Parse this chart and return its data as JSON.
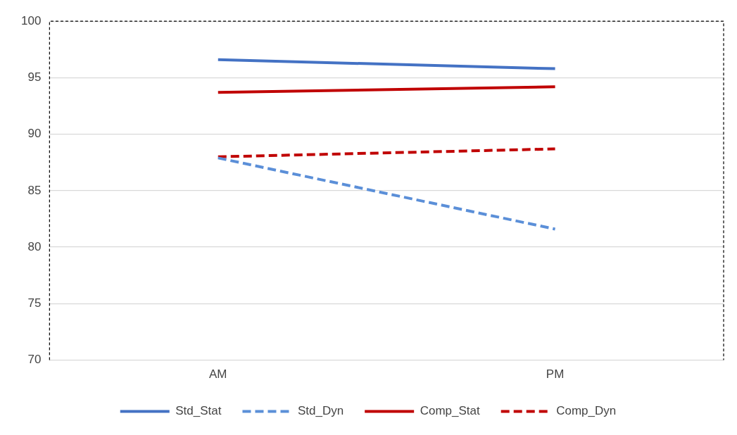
{
  "chart_data": {
    "type": "line",
    "categories": [
      "AM",
      "PM"
    ],
    "series": [
      {
        "name": "Std_Stat",
        "color": "#4472c4",
        "values": [
          96.6,
          95.8
        ],
        "line_style": "solid"
      },
      {
        "name": "Std_Dyn",
        "color": "#5b8fd8",
        "values": [
          87.9,
          81.6
        ],
        "line_style": "dashed"
      },
      {
        "name": "Comp_Stat",
        "color": "#c00000",
        "values": [
          93.7,
          94.2
        ],
        "line_style": "solid"
      },
      {
        "name": "Comp_Dyn",
        "color": "#c00000",
        "values": [
          88.0,
          88.7
        ],
        "line_style": "dashed"
      }
    ],
    "ylim": [
      70,
      100
    ],
    "yticks": [
      70,
      75,
      80,
      85,
      90,
      95,
      100
    ],
    "grid": "y",
    "legend": "bottom",
    "marker": "none"
  }
}
